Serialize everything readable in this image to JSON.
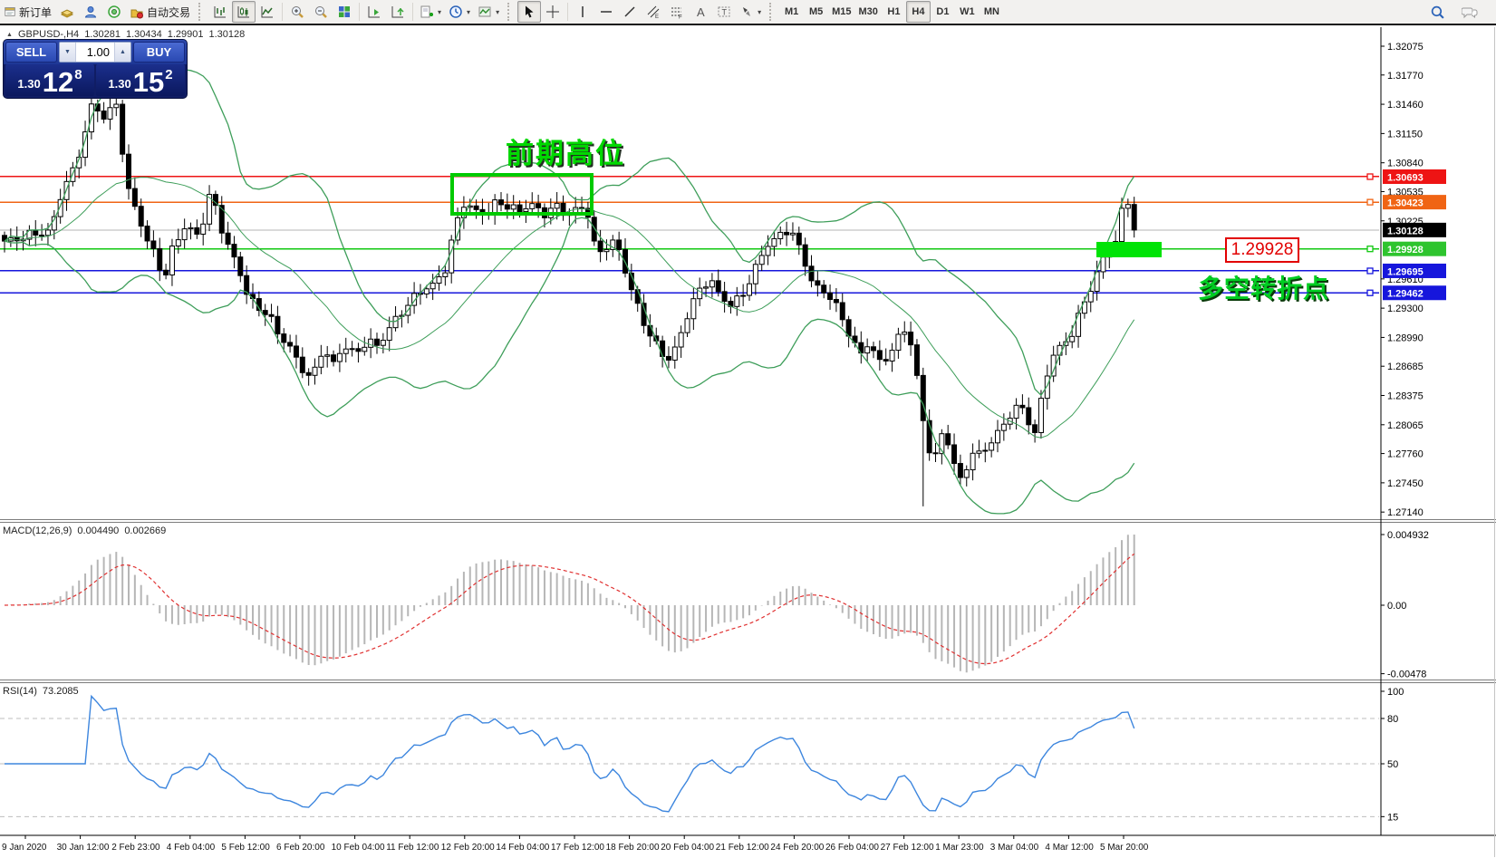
{
  "toolbar": {
    "new_order_label": "新订单",
    "autotrading_label": "自动交易",
    "timeframes": [
      "M1",
      "M5",
      "M15",
      "M30",
      "H1",
      "H4",
      "D1",
      "W1",
      "MN"
    ],
    "active_timeframe": "H4"
  },
  "chart_header": {
    "symbol_period": "GBPUSD-,H4",
    "open": "1.30281",
    "high": "1.30434",
    "low": "1.29901",
    "close": "1.30128"
  },
  "trade_panel": {
    "sell_label": "SELL",
    "buy_label": "BUY",
    "volume": "1.00",
    "sell_price": {
      "big": "1.30",
      "huge": "12",
      "sup": "8"
    },
    "buy_price": {
      "big": "1.30",
      "huge": "15",
      "sup": "2"
    }
  },
  "annotations": {
    "previous_high": {
      "text": "前期高位"
    },
    "turning_point": {
      "text": "多空转折点"
    },
    "support_label": {
      "text": "1.29928"
    }
  },
  "levels": [
    {
      "value": 1.30693,
      "color": "#ee1414"
    },
    {
      "value": 1.30423,
      "color": "#f06414"
    },
    {
      "value": 1.29928,
      "color": "#12c812"
    },
    {
      "value": 1.29695,
      "color": "#1616dc"
    },
    {
      "value": 1.29462,
      "color": "#1616dc"
    }
  ],
  "current_price_line": {
    "value": 1.30128,
    "color": "#b4b4b4"
  },
  "price_axis": {
    "ticks": [
      {
        "text": "1.32075",
        "value": 1.32075
      },
      {
        "text": "1.31770",
        "value": 1.3177
      },
      {
        "text": "1.31460",
        "value": 1.3146
      },
      {
        "text": "1.31150",
        "value": 1.3115
      },
      {
        "text": "1.30840",
        "value": 1.3084
      },
      {
        "text": "1.30535",
        "value": 1.30535
      },
      {
        "text": "1.30225",
        "value": 1.30225
      },
      {
        "text": "1.29610",
        "value": 1.2961
      },
      {
        "text": "1.29300",
        "value": 1.293
      },
      {
        "text": "1.28990",
        "value": 1.2899
      },
      {
        "text": "1.28685",
        "value": 1.28685
      },
      {
        "text": "1.28375",
        "value": 1.28375
      },
      {
        "text": "1.28065",
        "value": 1.28065
      },
      {
        "text": "1.27760",
        "value": 1.2776
      },
      {
        "text": "1.27450",
        "value": 1.2745
      },
      {
        "text": "1.27140",
        "value": 1.2714
      }
    ],
    "badges": [
      {
        "text": "1.30693",
        "value": 1.30693,
        "bg": "#ee1414"
      },
      {
        "text": "1.30423",
        "value": 1.30423,
        "bg": "#f06414"
      },
      {
        "text": "1.30128",
        "value": 1.30128,
        "bg": "#000000"
      },
      {
        "text": "1.29928",
        "value": 1.29928,
        "bg": "#2ec42e"
      },
      {
        "text": "1.29695",
        "value": 1.29695,
        "bg": "#1616dc"
      },
      {
        "text": "1.29462",
        "value": 1.29462,
        "bg": "#1616dc"
      }
    ]
  },
  "macd": {
    "label": "MACD(12,26,9)",
    "main_value": "0.004490",
    "signal_value": "0.002669",
    "axis": [
      {
        "text": "0.004932",
        "value": 0.004932
      },
      {
        "text": "0.00",
        "value": 0
      },
      {
        "text": "-0.00478",
        "value": -0.00478
      }
    ]
  },
  "rsi": {
    "label": "RSI(14)",
    "value": "73.2085",
    "axis": [
      {
        "text": "100",
        "value": 100
      },
      {
        "text": "80",
        "value": 80
      },
      {
        "text": "50",
        "value": 50
      },
      {
        "text": "15",
        "value": 15
      }
    ],
    "grid_levels": [
      80,
      50,
      15
    ]
  },
  "time_axis": {
    "labels": [
      "9 Jan 2020",
      "30 Jan 12:00",
      "2 Feb 23:00",
      "4 Feb 04:00",
      "5 Feb 12:00",
      "6 Feb 20:00",
      "10 Feb 04:00",
      "11 Feb 12:00",
      "12 Feb 20:00",
      "14 Feb 04:00",
      "17 Feb 12:00",
      "18 Feb 20:00",
      "20 Feb 04:00",
      "21 Feb 12:00",
      "24 Feb 20:00",
      "26 Feb 04:00",
      "27 Feb 12:00",
      "1 Mar 23:00",
      "3 Mar 04:00",
      "4 Mar 12:00",
      "5 Mar 20:00"
    ]
  },
  "chart_data": {
    "type": "candlestick",
    "symbol": "GBPUSD-",
    "timeframe": "H4",
    "ohlc_display": {
      "open": 1.30281,
      "high": 1.30434,
      "low": 1.29901,
      "close": 1.30128
    },
    "y_range": [
      1.2714,
      1.32075
    ],
    "last_close": 1.30128,
    "long_wick": {
      "x": 1022,
      "low": 1.272
    },
    "bollinger": {
      "period": 20,
      "deviation": 2,
      "color": "#3e9e5a"
    },
    "macd_params": {
      "fast": 12,
      "slow": 26,
      "signal": 9,
      "display_max": 0.004932
    },
    "rsi_params": {
      "period": 14
    },
    "candle_colors": {
      "bull": "#ffffff",
      "bear": "#000000",
      "outline": "#000000"
    },
    "macd_colors": {
      "histogram": "#b6b6b6",
      "signal": "#e03030"
    },
    "rsi_color": "#3d86de",
    "price_path": [
      [
        0,
        1.3
      ],
      [
        28,
        1.3006
      ],
      [
        55,
        1.3012
      ],
      [
        68,
        1.3052
      ],
      [
        82,
        1.3078
      ],
      [
        95,
        1.312
      ],
      [
        103,
        1.3152
      ],
      [
        112,
        1.3128
      ],
      [
        124,
        1.3142
      ],
      [
        131,
        1.315
      ],
      [
        138,
        1.3062
      ],
      [
        150,
        1.3034
      ],
      [
        163,
        1.3
      ],
      [
        172,
        1.2988
      ],
      [
        181,
        1.2958
      ],
      [
        192,
        1.2998
      ],
      [
        205,
        1.3018
      ],
      [
        218,
        1.3008
      ],
      [
        228,
        1.303
      ],
      [
        233,
        1.3058
      ],
      [
        240,
        1.3028
      ],
      [
        252,
        1.2995
      ],
      [
        262,
        1.2975
      ],
      [
        272,
        1.2945
      ],
      [
        283,
        1.2932
      ],
      [
        295,
        1.2925
      ],
      [
        308,
        1.29
      ],
      [
        320,
        1.289
      ],
      [
        332,
        1.2868
      ],
      [
        344,
        1.2853
      ],
      [
        356,
        1.2888
      ],
      [
        368,
        1.2872
      ],
      [
        380,
        1.289
      ],
      [
        392,
        1.288
      ],
      [
        405,
        1.2897
      ],
      [
        418,
        1.2888
      ],
      [
        432,
        1.2913
      ],
      [
        448,
        1.2932
      ],
      [
        465,
        1.2948
      ],
      [
        480,
        1.2958
      ],
      [
        492,
        1.2972
      ],
      [
        502,
        1.3015
      ],
      [
        512,
        1.3042
      ],
      [
        524,
        1.3034
      ],
      [
        537,
        1.3028
      ],
      [
        549,
        1.3044
      ],
      [
        561,
        1.3038
      ],
      [
        574,
        1.3032
      ],
      [
        587,
        1.304
      ],
      [
        600,
        1.303
      ],
      [
        613,
        1.3038
      ],
      [
        626,
        1.3028
      ],
      [
        639,
        1.304
      ],
      [
        650,
        1.3028
      ],
      [
        658,
        1.2984
      ],
      [
        668,
        1.2996
      ],
      [
        680,
        1.3002
      ],
      [
        690,
        1.2968
      ],
      [
        702,
        1.2935
      ],
      [
        714,
        1.2908
      ],
      [
        726,
        1.2888
      ],
      [
        736,
        1.2872
      ],
      [
        748,
        1.2893
      ],
      [
        760,
        1.2928
      ],
      [
        772,
        1.2948
      ],
      [
        784,
        1.2962
      ],
      [
        796,
        1.2942
      ],
      [
        808,
        1.2932
      ],
      [
        820,
        1.2945
      ],
      [
        833,
        1.2972
      ],
      [
        846,
        1.2995
      ],
      [
        858,
        1.3005
      ],
      [
        872,
        1.3016
      ],
      [
        884,
        1.2988
      ],
      [
        896,
        1.2958
      ],
      [
        908,
        1.2948
      ],
      [
        918,
        1.2942
      ],
      [
        928,
        1.292
      ],
      [
        940,
        1.2898
      ],
      [
        950,
        1.2882
      ],
      [
        960,
        1.2895
      ],
      [
        970,
        1.287
      ],
      [
        980,
        1.288
      ],
      [
        992,
        1.29
      ],
      [
        1002,
        1.2908
      ],
      [
        1012,
        1.2856
      ],
      [
        1022,
        1.2788
      ],
      [
        1032,
        1.2772
      ],
      [
        1042,
        1.2802
      ],
      [
        1052,
        1.2768
      ],
      [
        1062,
        1.2744
      ],
      [
        1072,
        1.278
      ],
      [
        1082,
        1.2772
      ],
      [
        1092,
        1.2788
      ],
      [
        1102,
        1.28
      ],
      [
        1112,
        1.2812
      ],
      [
        1122,
        1.2826
      ],
      [
        1132,
        1.2818
      ],
      [
        1142,
        1.2798
      ],
      [
        1152,
        1.2846
      ],
      [
        1162,
        1.288
      ],
      [
        1172,
        1.289
      ],
      [
        1182,
        1.2902
      ],
      [
        1192,
        1.2925
      ],
      [
        1202,
        1.2946
      ],
      [
        1212,
        1.2972
      ],
      [
        1222,
        1.2992
      ],
      [
        1232,
        1.3002
      ],
      [
        1240,
        1.304
      ],
      [
        1247,
        1.3044
      ],
      [
        1253,
        1.30128
      ]
    ]
  }
}
